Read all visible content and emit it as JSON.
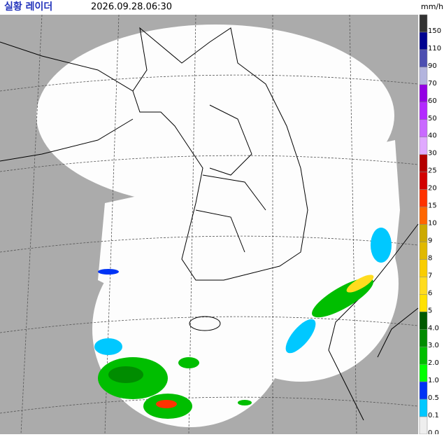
{
  "header": {
    "title": "실황 레이더",
    "timestamp": "2026.09.28.06:30",
    "unit": "mm/h"
  },
  "legend": [
    {
      "label": "150",
      "color": "#333333"
    },
    {
      "label": "110",
      "color": "#000390"
    },
    {
      "label": "90",
      "color": "#4c4eb1"
    },
    {
      "label": "70",
      "color": "#b3b4de"
    },
    {
      "label": "60",
      "color": "#9300e4"
    },
    {
      "label": "50",
      "color": "#b329ff"
    },
    {
      "label": "40",
      "color": "#c969ff"
    },
    {
      "label": "30",
      "color": "#e0a9ff"
    },
    {
      "label": "25",
      "color": "#b40000"
    },
    {
      "label": "20",
      "color": "#d20000"
    },
    {
      "label": "15",
      "color": "#ff3200"
    },
    {
      "label": "10",
      "color": "#ff6600"
    },
    {
      "label": "9",
      "color": "#ccaa00"
    },
    {
      "label": "8",
      "color": "#e0b900"
    },
    {
      "label": "7",
      "color": "#f9cd00"
    },
    {
      "label": "6",
      "color": "#ffdc1f"
    },
    {
      "label": "5",
      "color": "#ffe100"
    },
    {
      "label": "4.0",
      "color": "#005a00"
    },
    {
      "label": "3.0",
      "color": "#008c00"
    },
    {
      "label": "2.0",
      "color": "#00be00"
    },
    {
      "label": "1.0",
      "color": "#00ff00"
    },
    {
      "label": "0.5",
      "color": "#0033f5"
    },
    {
      "label": "0.1",
      "color": "#00c8ff"
    },
    {
      "label": "0.0",
      "color": "#eeeeee"
    }
  ]
}
